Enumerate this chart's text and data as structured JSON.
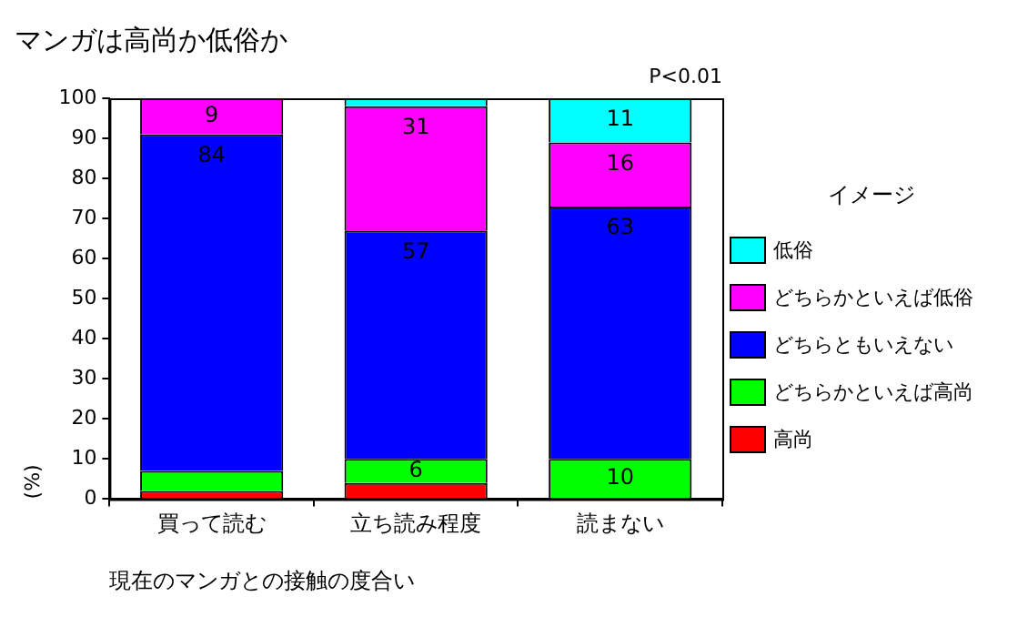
{
  "chart_data": {
    "type": "bar",
    "title": "マンガは高尚か低俗か",
    "xlabel": "現在のマンガとの接触の度合い",
    "ylabel": "(%)",
    "legend_title": "イメージ",
    "annotations": [
      "P<0.01"
    ],
    "stacked": true,
    "categories": [
      "買って読む",
      "立ち読み程度",
      "読まない"
    ],
    "series": [
      {
        "name": "高尚",
        "color": "#ff0000",
        "values": [
          2,
          4,
          0
        ],
        "value_labels": [
          null,
          null,
          null
        ]
      },
      {
        "name": "どちらかといえば高尚",
        "color": "#00ff00",
        "values": [
          5,
          6,
          10
        ],
        "value_labels": [
          null,
          "6",
          "10"
        ]
      },
      {
        "name": "どちらともいえない",
        "color": "#0000ff",
        "values": [
          84,
          57,
          63
        ],
        "value_labels": [
          "84",
          "57",
          "63"
        ]
      },
      {
        "name": "どちらかといえば低俗",
        "color": "#ff00ff",
        "values": [
          9,
          31,
          16
        ],
        "value_labels": [
          "9",
          "31",
          "16"
        ]
      },
      {
        "name": "低俗",
        "color": "#00ffff",
        "values": [
          0,
          2,
          11
        ],
        "value_labels": [
          null,
          null,
          "11"
        ]
      }
    ],
    "ylim": [
      0,
      100
    ],
    "yticks": [
      0,
      10,
      20,
      30,
      40,
      50,
      60,
      70,
      80,
      90,
      100
    ],
    "grid": false,
    "legend": "right"
  }
}
